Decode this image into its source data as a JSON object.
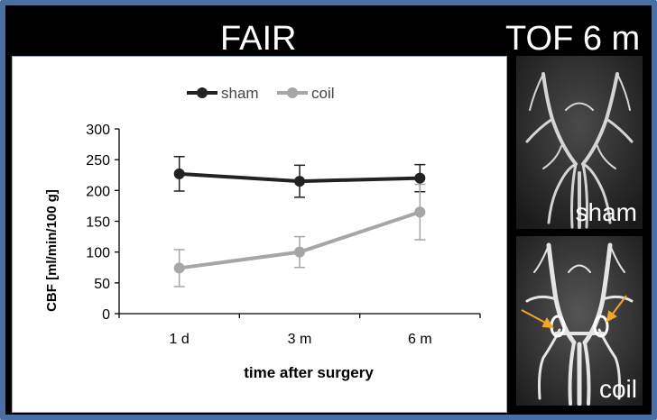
{
  "panels": {
    "left_title": "FAIR",
    "right_title": "TOF 6 m",
    "image_top_label": "sham",
    "image_bottom_label": "coil"
  },
  "colors": {
    "frame_border": "#4a6fa5",
    "sham": "#222222",
    "coil": "#a6a6a6",
    "arrow": "#f5a623"
  },
  "icons": {
    "top_image": "mra-sham-vessels-image",
    "bottom_image": "mra-coil-vessels-image",
    "markers": "yellow-arrow"
  },
  "chart_data": {
    "type": "line",
    "categories": [
      "1 d",
      "3 m",
      "6 m"
    ],
    "series": [
      {
        "name": "sham",
        "values": [
          227,
          215,
          220
        ],
        "errors": [
          28,
          26,
          22
        ],
        "color": "#222222"
      },
      {
        "name": "coil",
        "values": [
          74,
          100,
          165
        ],
        "errors": [
          30,
          25,
          45
        ],
        "color": "#a6a6a6"
      }
    ],
    "xlabel": "time after surgery",
    "ylabel": "CBF [ml/min/100 g]",
    "ylim": [
      0,
      300
    ],
    "yticks": [
      0,
      50,
      100,
      150,
      200,
      250,
      300
    ],
    "legend_position": "top",
    "grid": false
  }
}
